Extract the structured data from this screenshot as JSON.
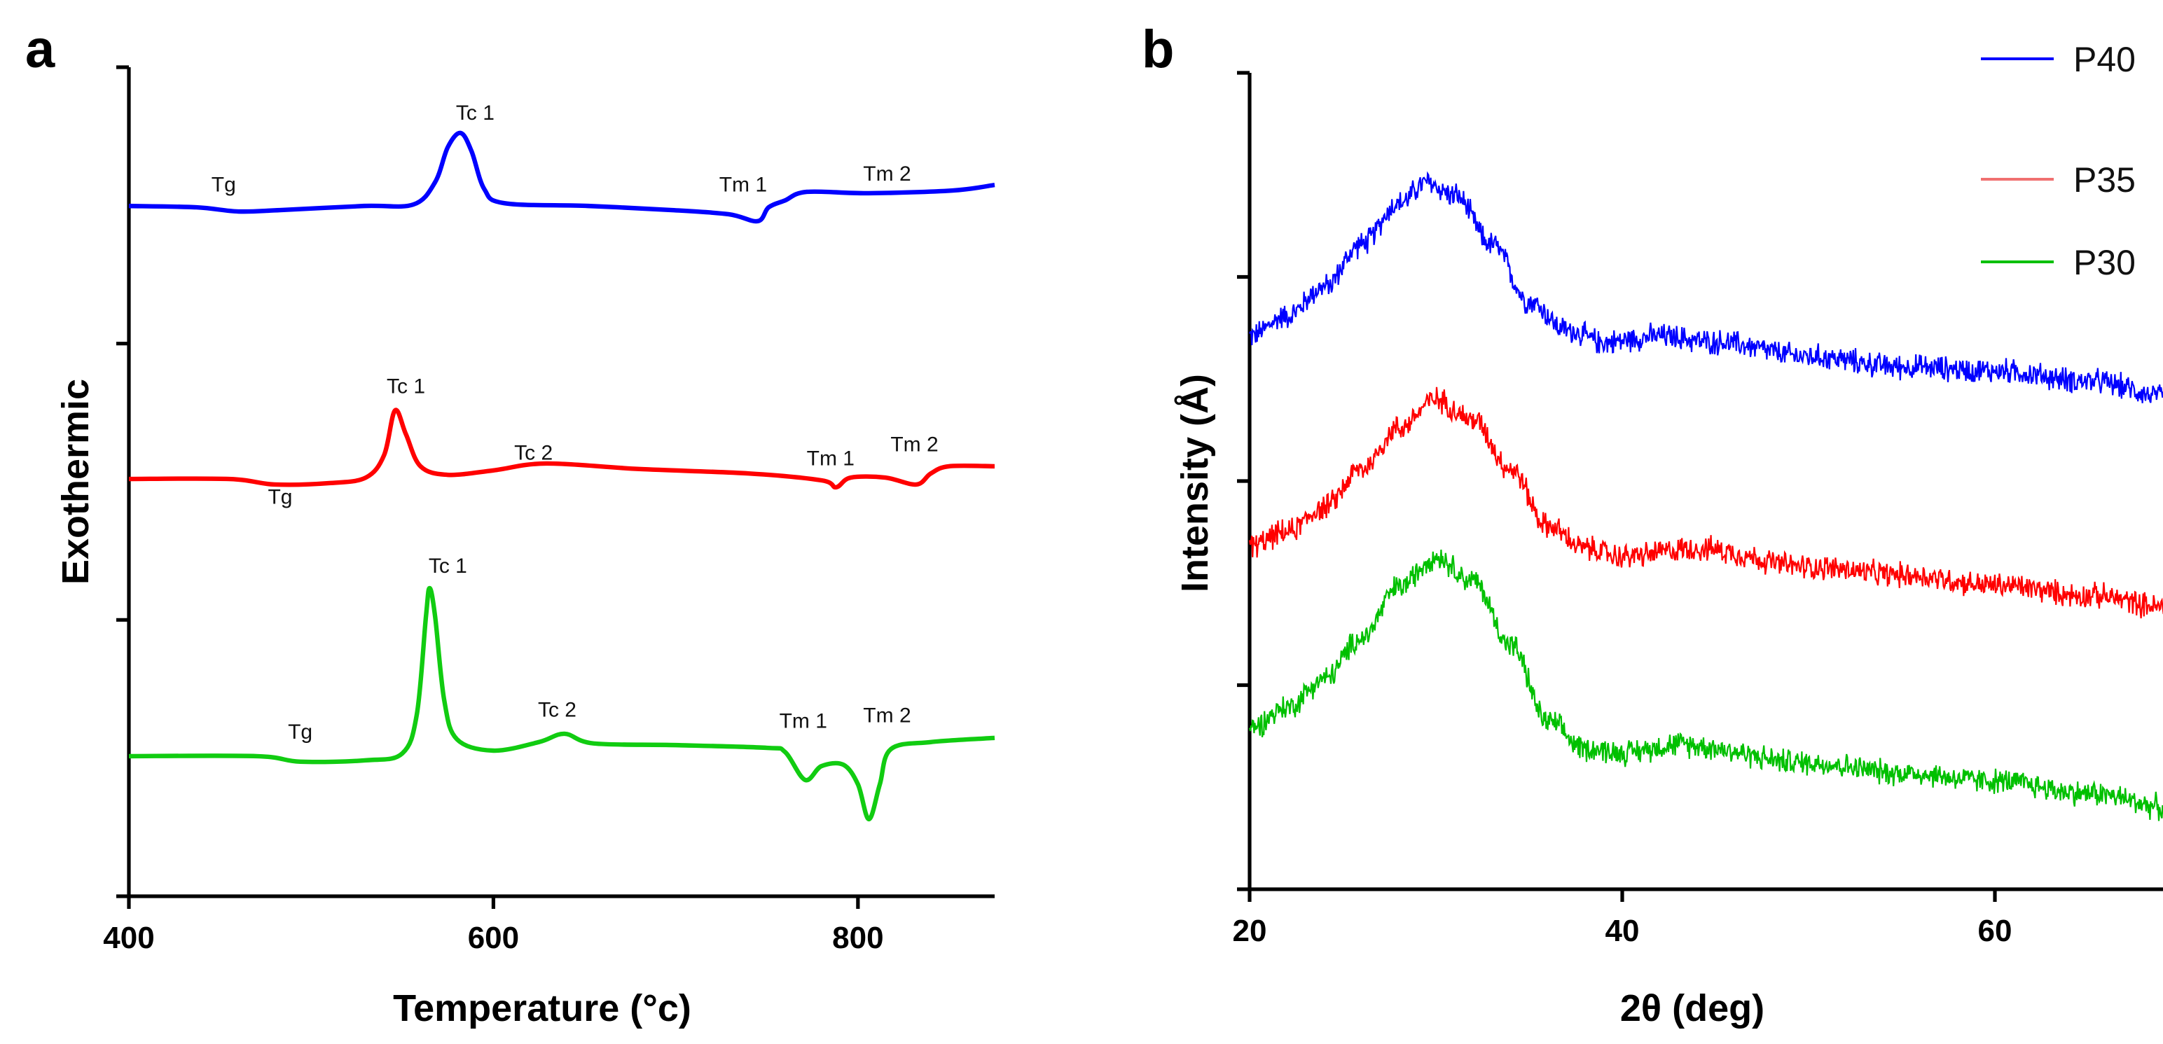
{
  "chart_data": [
    {
      "panel": "a",
      "type": "line",
      "title": "",
      "xlabel": "Temperature (°c)",
      "ylabel": "Exothermic",
      "xlim": [
        400,
        875
      ],
      "ylim": [
        0,
        3
      ],
      "xticks": [
        400,
        600,
        800
      ],
      "yticks": [
        0,
        1,
        2,
        3
      ],
      "show_ytick_labels": false,
      "grid": false,
      "series": [
        {
          "name": "P40",
          "color": "#0000ff",
          "points": [
            [
              400,
              2.498
            ],
            [
              437,
              2.493
            ],
            [
              460,
              2.478
            ],
            [
              483,
              2.483
            ],
            [
              529,
              2.498
            ],
            [
              556,
              2.503
            ],
            [
              568,
              2.584
            ],
            [
              575,
              2.711
            ],
            [
              582,
              2.762
            ],
            [
              588,
              2.696
            ],
            [
              595,
              2.559
            ],
            [
              606,
              2.508
            ],
            [
              652,
              2.498
            ],
            [
              698,
              2.483
            ],
            [
              729,
              2.468
            ],
            [
              745,
              2.443
            ],
            [
              751,
              2.493
            ],
            [
              760,
              2.518
            ],
            [
              772,
              2.549
            ],
            [
              806,
              2.544
            ],
            [
              852,
              2.554
            ],
            [
              875,
              2.574
            ]
          ],
          "annotations": [
            {
              "text": "Tg",
              "x": 452,
              "y": 2.55
            },
            {
              "text": "Tc 1",
              "x": 590,
              "y": 2.81
            },
            {
              "text": "Tm 1",
              "x": 737,
              "y": 2.55
            },
            {
              "text": "Tm 2",
              "x": 816,
              "y": 2.59
            }
          ]
        },
        {
          "name": "P35",
          "color": "#ff0000",
          "points": [
            [
              400,
              1.51
            ],
            [
              455,
              1.51
            ],
            [
              480,
              1.49
            ],
            [
              510,
              1.495
            ],
            [
              530,
              1.515
            ],
            [
              540,
              1.596
            ],
            [
              546,
              1.758
            ],
            [
              552,
              1.672
            ],
            [
              560,
              1.556
            ],
            [
              575,
              1.525
            ],
            [
              600,
              1.541
            ],
            [
              629,
              1.566
            ],
            [
              680,
              1.546
            ],
            [
              740,
              1.53
            ],
            [
              780,
              1.505
            ],
            [
              788,
              1.48
            ],
            [
              796,
              1.515
            ],
            [
              815,
              1.515
            ],
            [
              832,
              1.49
            ],
            [
              840,
              1.53
            ],
            [
              850,
              1.556
            ],
            [
              875,
              1.556
            ]
          ],
          "annotations": [
            {
              "text": "Tg",
              "x": 483,
              "y": 1.42
            },
            {
              "text": "Tc 1",
              "x": 552,
              "y": 1.82
            },
            {
              "text": "Tc 2",
              "x": 622,
              "y": 1.58
            },
            {
              "text": "Tm 1",
              "x": 785,
              "y": 1.56
            },
            {
              "text": "Tm 2",
              "x": 831,
              "y": 1.61
            }
          ]
        },
        {
          "name": "P30",
          "color": "#11cc11",
          "points": [
            [
              400,
              0.507
            ],
            [
              470,
              0.507
            ],
            [
              494,
              0.487
            ],
            [
              530,
              0.492
            ],
            [
              550,
              0.517
            ],
            [
              558,
              0.659
            ],
            [
              563,
              1.013
            ],
            [
              565,
              1.115
            ],
            [
              568,
              1.013
            ],
            [
              573,
              0.71
            ],
            [
              580,
              0.568
            ],
            [
              600,
              0.527
            ],
            [
              625,
              0.558
            ],
            [
              639,
              0.588
            ],
            [
              655,
              0.553
            ],
            [
              700,
              0.547
            ],
            [
              750,
              0.537
            ],
            [
              760,
              0.522
            ],
            [
              771,
              0.421
            ],
            [
              780,
              0.471
            ],
            [
              792,
              0.476
            ],
            [
              800,
              0.405
            ],
            [
              806,
              0.279
            ],
            [
              812,
              0.405
            ],
            [
              818,
              0.532
            ],
            [
              840,
              0.558
            ],
            [
              875,
              0.573
            ]
          ],
          "annotations": [
            {
              "text": "Tg",
              "x": 494,
              "y": 0.57
            },
            {
              "text": "Tc 1",
              "x": 575,
              "y": 1.17
            },
            {
              "text": "Tc 2",
              "x": 635,
              "y": 0.65
            },
            {
              "text": "Tm 1",
              "x": 770,
              "y": 0.61
            },
            {
              "text": "Tm 2",
              "x": 816,
              "y": 0.63
            }
          ]
        }
      ]
    },
    {
      "panel": "b",
      "type": "line",
      "title": "",
      "xlabel": "2θ (deg)",
      "ylabel": "Intensity (Å)",
      "xlim": [
        20,
        70
      ],
      "ylim": [
        0,
        4
      ],
      "xticks": [
        20,
        40,
        60
      ],
      "yticks": [
        0,
        1,
        2,
        3,
        4
      ],
      "show_ytick_labels": false,
      "grid": false,
      "legend": "top-right",
      "series": [
        {
          "name": "P40",
          "color": "#0000ff",
          "legend_color": "#0000ff",
          "noise": 0.05,
          "points": [
            [
              20,
              2.71
            ],
            [
              22,
              2.81
            ],
            [
              24,
              2.95
            ],
            [
              26,
              3.16
            ],
            [
              28,
              3.36
            ],
            [
              29.5,
              3.46
            ],
            [
              31,
              3.4
            ],
            [
              33,
              3.16
            ],
            [
              35,
              2.88
            ],
            [
              37,
              2.74
            ],
            [
              39,
              2.68
            ],
            [
              42,
              2.71
            ],
            [
              45,
              2.68
            ],
            [
              50,
              2.61
            ],
            [
              55,
              2.56
            ],
            [
              60,
              2.54
            ],
            [
              65,
              2.49
            ],
            [
              70,
              2.4
            ]
          ]
        },
        {
          "name": "P35",
          "color": "#ff0000",
          "legend_color": "#f07070",
          "noise": 0.05,
          "points": [
            [
              20,
              1.68
            ],
            [
              22,
              1.75
            ],
            [
              24,
              1.87
            ],
            [
              26,
              2.06
            ],
            [
              28,
              2.26
            ],
            [
              30,
              2.4
            ],
            [
              32,
              2.3
            ],
            [
              34,
              2.06
            ],
            [
              36,
              1.78
            ],
            [
              38,
              1.67
            ],
            [
              40,
              1.63
            ],
            [
              44,
              1.67
            ],
            [
              50,
              1.58
            ],
            [
              55,
              1.54
            ],
            [
              60,
              1.49
            ],
            [
              65,
              1.44
            ],
            [
              70,
              1.37
            ]
          ]
        },
        {
          "name": "P30",
          "color": "#00c000",
          "legend_color": "#00c000",
          "noise": 0.05,
          "points": [
            [
              20,
              0.79
            ],
            [
              22,
              0.89
            ],
            [
              24,
              1.03
            ],
            [
              26,
              1.23
            ],
            [
              28,
              1.48
            ],
            [
              30,
              1.63
            ],
            [
              32,
              1.51
            ],
            [
              34,
              1.2
            ],
            [
              36,
              0.82
            ],
            [
              38,
              0.69
            ],
            [
              40,
              0.67
            ],
            [
              43,
              0.71
            ],
            [
              50,
              0.62
            ],
            [
              55,
              0.57
            ],
            [
              60,
              0.53
            ],
            [
              65,
              0.47
            ],
            [
              70,
              0.39
            ]
          ]
        }
      ]
    }
  ]
}
